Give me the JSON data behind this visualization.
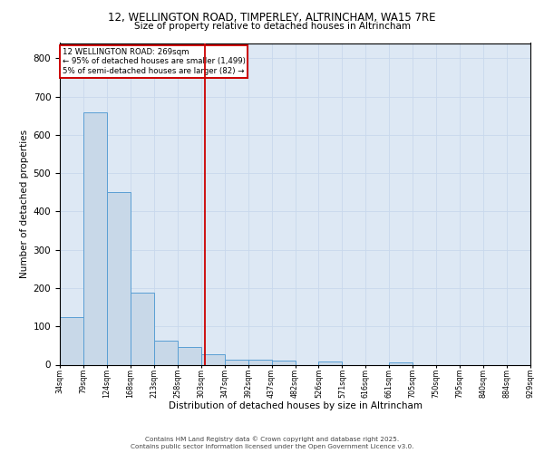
{
  "title1": "12, WELLINGTON ROAD, TIMPERLEY, ALTRINCHAM, WA15 7RE",
  "title2": "Size of property relative to detached houses in Altrincham",
  "xlabel": "Distribution of detached houses by size in Altrincham",
  "ylabel": "Number of detached properties",
  "bar_values": [
    125,
    660,
    450,
    188,
    63,
    47,
    27,
    12,
    12,
    10,
    0,
    8,
    0,
    0,
    5,
    0,
    0,
    0,
    0,
    0
  ],
  "tick_labels": [
    "34sqm",
    "79sqm",
    "124sqm",
    "168sqm",
    "213sqm",
    "258sqm",
    "303sqm",
    "347sqm",
    "392sqm",
    "437sqm",
    "482sqm",
    "526sqm",
    "571sqm",
    "616sqm",
    "661sqm",
    "705sqm",
    "750sqm",
    "795sqm",
    "840sqm",
    "884sqm",
    "929sqm"
  ],
  "bar_color": "#c8d8e8",
  "bar_edge_color": "#5a9fd4",
  "vline_x": 6.17,
  "vline_color": "#cc0000",
  "annotation_text": "12 WELLINGTON ROAD: 269sqm\n← 95% of detached houses are smaller (1,499)\n5% of semi-detached houses are larger (82) →",
  "annotation_box_color": "#cc0000",
  "ylim": [
    0,
    840
  ],
  "yticks": [
    0,
    100,
    200,
    300,
    400,
    500,
    600,
    700,
    800
  ],
  "grid_color": "#c8d8ec",
  "bg_color": "#dde8f4",
  "footer1": "Contains HM Land Registry data © Crown copyright and database right 2025.",
  "footer2": "Contains public sector information licensed under the Open Government Licence v3.0."
}
